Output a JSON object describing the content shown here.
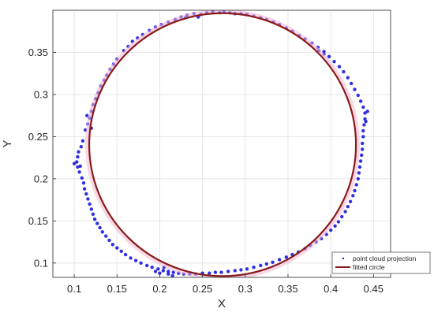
{
  "chart_data": {
    "type": "scatter",
    "xlabel": "X",
    "ylabel": "Y",
    "xlim": [
      0.075,
      0.47
    ],
    "ylim": [
      0.083,
      0.4
    ],
    "x_ticks": [
      "0.1",
      "0.15",
      "0.2",
      "0.25",
      "0.3",
      "0.35",
      "0.4",
      "0.45"
    ],
    "y_ticks": [
      "0.1",
      "0.15",
      "0.2",
      "0.25",
      "0.3",
      "0.35"
    ],
    "grid": true,
    "legend_placement": "bottom-right",
    "series": [
      {
        "name": "point cloud projection",
        "kind": "scatter",
        "color": "#1a1adb",
        "points": [
          [
            0.27,
            0.397
          ],
          [
            0.255,
            0.397
          ],
          [
            0.24,
            0.396
          ],
          [
            0.225,
            0.392
          ],
          [
            0.21,
            0.386
          ],
          [
            0.195,
            0.38
          ],
          [
            0.18,
            0.371
          ],
          [
            0.168,
            0.363
          ],
          [
            0.158,
            0.352
          ],
          [
            0.15,
            0.342
          ],
          [
            0.142,
            0.33
          ],
          [
            0.135,
            0.317
          ],
          [
            0.128,
            0.302
          ],
          [
            0.122,
            0.288
          ],
          [
            0.118,
            0.272
          ],
          [
            0.113,
            0.258
          ],
          [
            0.11,
            0.245
          ],
          [
            0.105,
            0.232
          ],
          [
            0.103,
            0.22
          ],
          [
            0.106,
            0.208
          ],
          [
            0.111,
            0.195
          ],
          [
            0.114,
            0.182
          ],
          [
            0.118,
            0.17
          ],
          [
            0.122,
            0.158
          ],
          [
            0.127,
            0.147
          ],
          [
            0.133,
            0.137
          ],
          [
            0.141,
            0.127
          ],
          [
            0.15,
            0.118
          ],
          [
            0.16,
            0.11
          ],
          [
            0.172,
            0.103
          ],
          [
            0.185,
            0.097
          ],
          [
            0.198,
            0.093
          ],
          [
            0.21,
            0.09
          ],
          [
            0.222,
            0.088
          ],
          [
            0.235,
            0.087
          ],
          [
            0.25,
            0.088
          ],
          [
            0.265,
            0.089
          ],
          [
            0.28,
            0.09
          ],
          [
            0.295,
            0.092
          ],
          [
            0.31,
            0.095
          ],
          [
            0.325,
            0.099
          ],
          [
            0.34,
            0.104
          ],
          [
            0.355,
            0.11
          ],
          [
            0.37,
            0.117
          ],
          [
            0.383,
            0.125
          ],
          [
            0.395,
            0.134
          ],
          [
            0.405,
            0.144
          ],
          [
            0.413,
            0.155
          ],
          [
            0.42,
            0.167
          ],
          [
            0.426,
            0.18
          ],
          [
            0.43,
            0.193
          ],
          [
            0.433,
            0.207
          ],
          [
            0.435,
            0.221
          ],
          [
            0.437,
            0.235
          ],
          [
            0.438,
            0.25
          ],
          [
            0.439,
            0.264
          ],
          [
            0.44,
            0.278
          ],
          [
            0.435,
            0.292
          ],
          [
            0.428,
            0.306
          ],
          [
            0.42,
            0.32
          ],
          [
            0.41,
            0.333
          ],
          [
            0.398,
            0.345
          ],
          [
            0.385,
            0.356
          ],
          [
            0.37,
            0.366
          ],
          [
            0.355,
            0.375
          ],
          [
            0.34,
            0.383
          ],
          [
            0.325,
            0.389
          ],
          [
            0.31,
            0.393
          ],
          [
            0.295,
            0.396
          ],
          [
            0.282,
            0.397
          ],
          [
            0.262,
            0.398
          ],
          [
            0.248,
            0.395
          ],
          [
            0.232,
            0.394
          ],
          [
            0.218,
            0.389
          ],
          [
            0.202,
            0.383
          ],
          [
            0.188,
            0.376
          ],
          [
            0.174,
            0.367
          ],
          [
            0.163,
            0.357
          ],
          [
            0.146,
            0.336
          ],
          [
            0.138,
            0.323
          ],
          [
            0.131,
            0.31
          ],
          [
            0.125,
            0.295
          ],
          [
            0.12,
            0.28
          ],
          [
            0.116,
            0.265
          ],
          [
            0.108,
            0.238
          ],
          [
            0.104,
            0.226
          ],
          [
            0.104,
            0.214
          ],
          [
            0.109,
            0.201
          ],
          [
            0.112,
            0.188
          ],
          [
            0.116,
            0.176
          ],
          [
            0.12,
            0.164
          ],
          [
            0.124,
            0.152
          ],
          [
            0.13,
            0.142
          ],
          [
            0.137,
            0.132
          ],
          [
            0.145,
            0.122
          ],
          [
            0.155,
            0.114
          ],
          [
            0.166,
            0.106
          ],
          [
            0.178,
            0.1
          ],
          [
            0.191,
            0.095
          ],
          [
            0.204,
            0.091
          ],
          [
            0.216,
            0.089
          ],
          [
            0.228,
            0.087
          ],
          [
            0.242,
            0.087
          ],
          [
            0.258,
            0.088
          ],
          [
            0.272,
            0.089
          ],
          [
            0.288,
            0.091
          ],
          [
            0.302,
            0.093
          ],
          [
            0.318,
            0.097
          ],
          [
            0.332,
            0.101
          ],
          [
            0.348,
            0.107
          ],
          [
            0.362,
            0.113
          ],
          [
            0.376,
            0.121
          ],
          [
            0.389,
            0.129
          ],
          [
            0.4,
            0.139
          ],
          [
            0.409,
            0.149
          ],
          [
            0.417,
            0.161
          ],
          [
            0.423,
            0.173
          ],
          [
            0.428,
            0.186
          ],
          [
            0.432,
            0.2
          ],
          [
            0.434,
            0.214
          ],
          [
            0.436,
            0.228
          ],
          [
            0.437,
            0.242
          ],
          [
            0.438,
            0.257
          ],
          [
            0.44,
            0.271
          ],
          [
            0.438,
            0.285
          ],
          [
            0.432,
            0.299
          ],
          [
            0.424,
            0.313
          ],
          [
            0.415,
            0.327
          ],
          [
            0.404,
            0.339
          ],
          [
            0.392,
            0.351
          ],
          [
            0.378,
            0.361
          ],
          [
            0.363,
            0.37
          ],
          [
            0.348,
            0.379
          ],
          [
            0.333,
            0.386
          ],
          [
            0.318,
            0.391
          ],
          [
            0.302,
            0.395
          ],
          [
            0.288,
            0.396
          ],
          [
            0.275,
            0.398
          ],
          [
            0.205,
            0.095
          ],
          [
            0.21,
            0.087
          ],
          [
            0.215,
            0.085
          ],
          [
            0.2,
            0.088
          ],
          [
            0.195,
            0.09
          ],
          [
            0.12,
            0.26
          ],
          [
            0.115,
            0.275
          ],
          [
            0.107,
            0.215
          ],
          [
            0.1,
            0.218
          ],
          [
            0.443,
            0.28
          ],
          [
            0.441,
            0.268
          ],
          [
            0.386,
            0.352
          ],
          [
            0.392,
            0.348
          ],
          [
            0.245,
            0.392
          ],
          [
            0.23,
            0.391
          ]
        ]
      },
      {
        "name": "fitted circle",
        "kind": "circle",
        "color": "#8b1a1a",
        "center": [
          0.2735,
          0.2405
        ],
        "radius": 0.156
      }
    ]
  }
}
